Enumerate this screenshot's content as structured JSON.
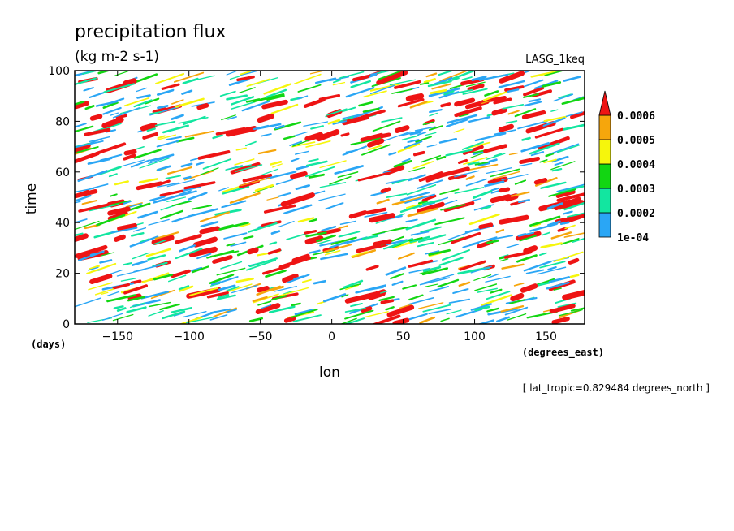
{
  "chart_data": {
    "type": "heatmap",
    "title": "precipitation flux",
    "units": "(kg m-2 s-1)",
    "dataset_label": "LASG_1keq",
    "xlabel": "lon",
    "ylabel": "time",
    "x_units": "(degrees_east)",
    "y_units": "(days)",
    "xlim": [
      -180,
      177
    ],
    "ylim": [
      0,
      100
    ],
    "x_ticks": [
      -150,
      -100,
      -50,
      0,
      50,
      100,
      150
    ],
    "y_ticks": [
      0,
      20,
      40,
      60,
      80,
      100
    ],
    "footnote": "[ lat_tropic=0.829484 degrees_north ]",
    "colorbar": {
      "levels": [
        "1e-04",
        "0.0002",
        "0.0003",
        "0.0004",
        "0.0005",
        "0.0006"
      ],
      "colors": [
        "#2aa6f5",
        "#12e6a0",
        "#12d612",
        "#f6f60c",
        "#f6a60c",
        "#ee1414"
      ]
    }
  }
}
